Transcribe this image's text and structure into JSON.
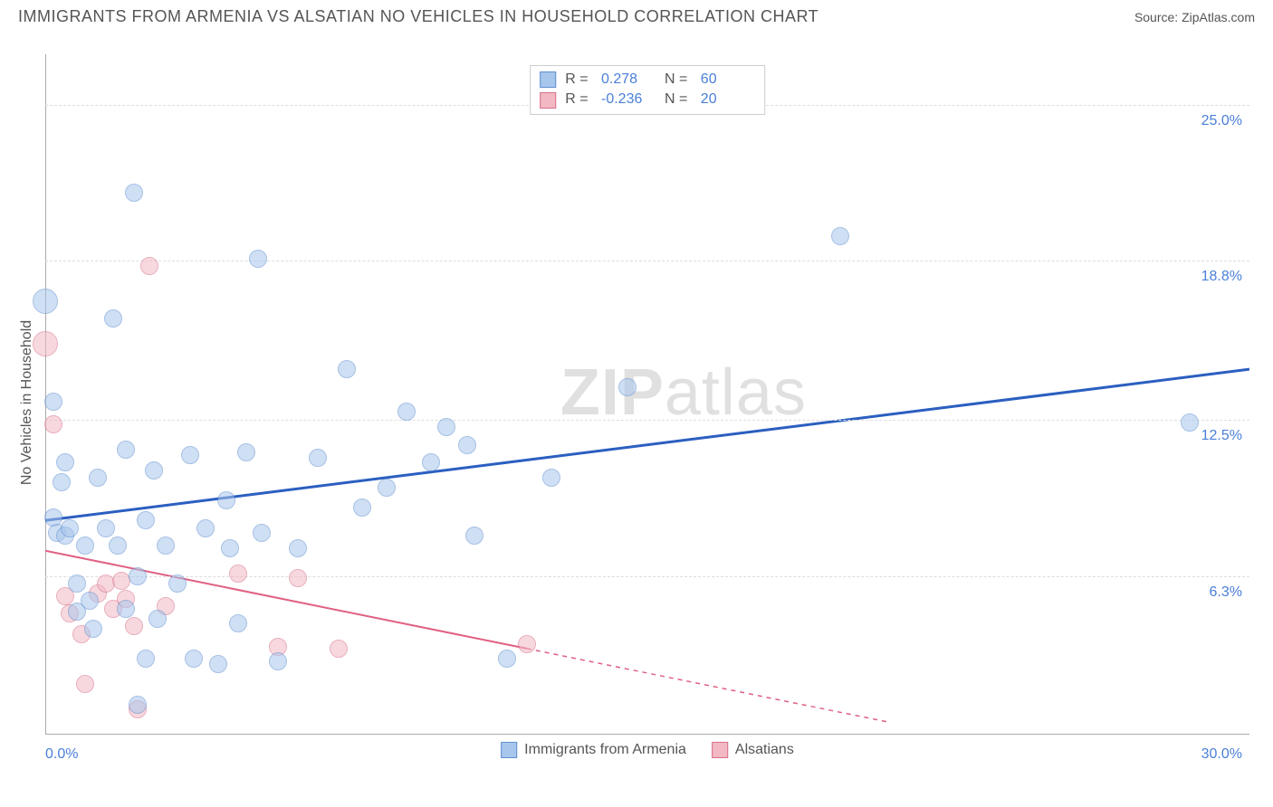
{
  "header": {
    "title": "IMMIGRANTS FROM ARMENIA VS ALSATIAN NO VEHICLES IN HOUSEHOLD CORRELATION CHART",
    "source_prefix": "Source: ",
    "source_link": "ZipAtlas.com"
  },
  "chart": {
    "type": "scatter",
    "y_axis_title": "No Vehicles in Household",
    "watermark": "ZIPatlas",
    "xlim": [
      0,
      30
    ],
    "ylim": [
      0,
      27
    ],
    "x_ticks": [
      {
        "v": 0.0,
        "label": "0.0%"
      },
      {
        "v": 30.0,
        "label": "30.0%"
      }
    ],
    "y_ticks": [
      {
        "v": 6.3,
        "label": "6.3%"
      },
      {
        "v": 12.5,
        "label": "12.5%"
      },
      {
        "v": 18.8,
        "label": "18.8%"
      },
      {
        "v": 25.0,
        "label": "25.0%"
      }
    ],
    "background_color": "#ffffff",
    "grid_color": "#dddddd",
    "grid_dash": "3,3",
    "series": [
      {
        "name": "Immigrants from Armenia",
        "fill": "#a8c6ec",
        "stroke": "#5e8fd0",
        "fill_opacity": 0.55,
        "marker_radius": 10,
        "R": "0.278",
        "N": "60",
        "trend": {
          "x1": 0,
          "y1": 8.5,
          "x2": 30,
          "y2": 14.5,
          "color": "#2b5fc0",
          "width": 3,
          "solid_to_x": 30
        },
        "points": [
          {
            "x": 0.0,
            "y": 17.2,
            "r": 14
          },
          {
            "x": 0.2,
            "y": 13.2
          },
          {
            "x": 0.2,
            "y": 8.6
          },
          {
            "x": 0.3,
            "y": 8.0
          },
          {
            "x": 0.4,
            "y": 10.0
          },
          {
            "x": 0.5,
            "y": 10.8
          },
          {
            "x": 0.5,
            "y": 7.9
          },
          {
            "x": 0.6,
            "y": 8.2
          },
          {
            "x": 0.8,
            "y": 6.0
          },
          {
            "x": 0.8,
            "y": 4.9
          },
          {
            "x": 1.0,
            "y": 7.5
          },
          {
            "x": 1.1,
            "y": 5.3
          },
          {
            "x": 1.2,
            "y": 4.2
          },
          {
            "x": 1.3,
            "y": 10.2
          },
          {
            "x": 1.5,
            "y": 8.2
          },
          {
            "x": 1.7,
            "y": 16.5
          },
          {
            "x": 1.8,
            "y": 7.5
          },
          {
            "x": 2.0,
            "y": 11.3
          },
          {
            "x": 2.0,
            "y": 5.0
          },
          {
            "x": 2.2,
            "y": 21.5
          },
          {
            "x": 2.3,
            "y": 6.3
          },
          {
            "x": 2.3,
            "y": 1.2
          },
          {
            "x": 2.5,
            "y": 3.0
          },
          {
            "x": 2.5,
            "y": 8.5
          },
          {
            "x": 2.7,
            "y": 10.5
          },
          {
            "x": 2.8,
            "y": 4.6
          },
          {
            "x": 3.0,
            "y": 7.5
          },
          {
            "x": 3.3,
            "y": 6.0
          },
          {
            "x": 3.6,
            "y": 11.1
          },
          {
            "x": 3.7,
            "y": 3.0
          },
          {
            "x": 4.0,
            "y": 8.2
          },
          {
            "x": 4.3,
            "y": 2.8
          },
          {
            "x": 4.5,
            "y": 9.3
          },
          {
            "x": 4.6,
            "y": 7.4
          },
          {
            "x": 4.8,
            "y": 4.4
          },
          {
            "x": 5.0,
            "y": 11.2
          },
          {
            "x": 5.3,
            "y": 18.9
          },
          {
            "x": 5.4,
            "y": 8.0
          },
          {
            "x": 5.8,
            "y": 2.9
          },
          {
            "x": 6.3,
            "y": 7.4
          },
          {
            "x": 6.8,
            "y": 11.0
          },
          {
            "x": 7.5,
            "y": 14.5
          },
          {
            "x": 7.9,
            "y": 9.0
          },
          {
            "x": 8.5,
            "y": 9.8
          },
          {
            "x": 9.0,
            "y": 12.8
          },
          {
            "x": 9.6,
            "y": 10.8
          },
          {
            "x": 10.0,
            "y": 12.2
          },
          {
            "x": 10.5,
            "y": 11.5
          },
          {
            "x": 10.7,
            "y": 7.9
          },
          {
            "x": 11.5,
            "y": 3.0
          },
          {
            "x": 12.6,
            "y": 10.2
          },
          {
            "x": 14.5,
            "y": 13.8
          },
          {
            "x": 19.8,
            "y": 19.8
          },
          {
            "x": 28.5,
            "y": 12.4
          }
        ]
      },
      {
        "name": "Alsatians",
        "fill": "#f2b9c4",
        "stroke": "#d86e8a",
        "fill_opacity": 0.55,
        "marker_radius": 10,
        "R": "-0.236",
        "N": "20",
        "trend": {
          "x1": 0,
          "y1": 7.3,
          "x2": 21,
          "y2": 0.5,
          "color": "#e06082",
          "width": 2,
          "solid_to_x": 12,
          "dash_after": true
        },
        "points": [
          {
            "x": 0.0,
            "y": 15.5,
            "r": 14
          },
          {
            "x": 0.2,
            "y": 12.3
          },
          {
            "x": 0.5,
            "y": 5.5
          },
          {
            "x": 0.6,
            "y": 4.8
          },
          {
            "x": 0.9,
            "y": 4.0
          },
          {
            "x": 1.0,
            "y": 2.0
          },
          {
            "x": 1.3,
            "y": 5.6
          },
          {
            "x": 1.5,
            "y": 6.0
          },
          {
            "x": 1.7,
            "y": 5.0
          },
          {
            "x": 1.9,
            "y": 6.1
          },
          {
            "x": 2.0,
            "y": 5.4
          },
          {
            "x": 2.2,
            "y": 4.3
          },
          {
            "x": 2.3,
            "y": 1.0
          },
          {
            "x": 2.6,
            "y": 18.6
          },
          {
            "x": 3.0,
            "y": 5.1
          },
          {
            "x": 4.8,
            "y": 6.4
          },
          {
            "x": 5.8,
            "y": 3.5
          },
          {
            "x": 6.3,
            "y": 6.2
          },
          {
            "x": 7.3,
            "y": 3.4
          },
          {
            "x": 12.0,
            "y": 3.6
          }
        ]
      }
    ],
    "legend": {
      "bottom_items": [
        {
          "label": "Immigrants from Armenia",
          "fill": "#a8c6ec",
          "stroke": "#5e8fd0"
        },
        {
          "label": "Alsatians",
          "fill": "#f2b9c4",
          "stroke": "#d86e8a"
        }
      ]
    }
  }
}
